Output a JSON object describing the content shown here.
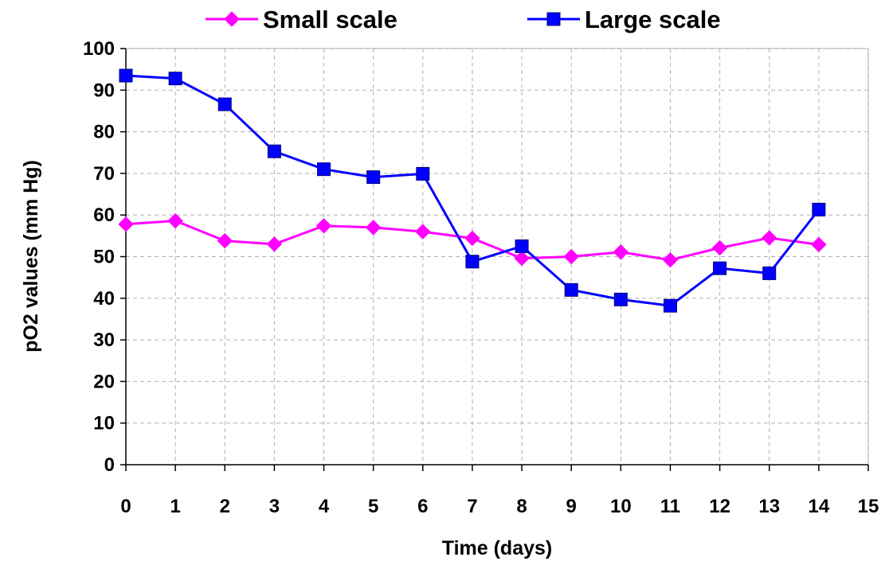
{
  "chart_data": {
    "type": "line",
    "xlabel": "Time (days)",
    "ylabel": "pO2 values (mm Hg)",
    "xlim": [
      0,
      15
    ],
    "ylim": [
      0,
      100
    ],
    "x_ticks": [
      "0",
      "1",
      "2",
      "3",
      "4",
      "5",
      "6",
      "7",
      "8",
      "9",
      "10",
      "11",
      "12",
      "13",
      "14",
      "15"
    ],
    "y_ticks": [
      "0",
      "10",
      "20",
      "30",
      "40",
      "50",
      "60",
      "70",
      "80",
      "90",
      "100"
    ],
    "grid": true,
    "legend_position": "top",
    "x": [
      0,
      1,
      2,
      3,
      4,
      5,
      6,
      7,
      8,
      9,
      10,
      11,
      12,
      13,
      14
    ],
    "series": [
      {
        "name": "Small scale",
        "color": "#ff00ff",
        "marker": "diamond",
        "values": [
          57.8,
          58.6,
          53.8,
          53.0,
          57.4,
          57.0,
          56.0,
          54.4,
          49.6,
          50.0,
          51.1,
          49.2,
          52.1,
          54.5,
          52.9
        ]
      },
      {
        "name": "Large scale",
        "color": "#0000ff",
        "marker": "square",
        "values": [
          93.5,
          92.8,
          86.6,
          75.3,
          71.0,
          69.1,
          69.9,
          48.8,
          52.5,
          42.0,
          39.7,
          38.2,
          47.2,
          46.0,
          61.3
        ]
      }
    ]
  }
}
